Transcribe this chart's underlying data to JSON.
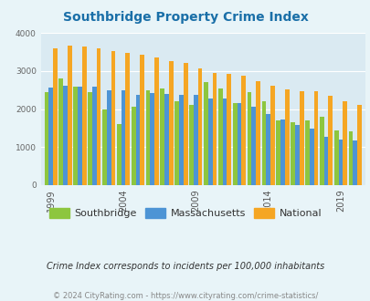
{
  "title": "Southbridge Property Crime Index",
  "years": [
    1999,
    2000,
    2001,
    2002,
    2003,
    2004,
    2005,
    2006,
    2007,
    2008,
    2009,
    2010,
    2011,
    2012,
    2013,
    2014,
    2015,
    2016,
    2017,
    2018,
    2019,
    2020
  ],
  "southbridge": [
    2450,
    2800,
    2600,
    2450,
    2000,
    1600,
    2060,
    2500,
    2550,
    2200,
    2100,
    2700,
    2550,
    2150,
    2450,
    2200,
    1700,
    1650,
    1700,
    1800,
    1450,
    1420
  ],
  "massachusetts": [
    2560,
    2620,
    2590,
    2580,
    2490,
    2490,
    2380,
    2430,
    2400,
    2380,
    2380,
    2280,
    2270,
    2160,
    2060,
    1860,
    1720,
    1580,
    1490,
    1280,
    1200,
    1180
  ],
  "national": [
    3600,
    3680,
    3650,
    3610,
    3520,
    3470,
    3430,
    3370,
    3260,
    3220,
    3060,
    2950,
    2920,
    2890,
    2730,
    2620,
    2510,
    2460,
    2470,
    2360,
    2200,
    2100
  ],
  "southbridge_color": "#8dc63f",
  "massachusetts_color": "#4d94d5",
  "national_color": "#f5a623",
  "bg_color": "#e8f4f8",
  "plot_bg_color": "#daeaf2",
  "ylim": [
    0,
    4000
  ],
  "yticks": [
    0,
    1000,
    2000,
    3000,
    4000
  ],
  "xlabel_ticks": [
    1999,
    2004,
    2009,
    2014,
    2019
  ],
  "footer1": "Crime Index corresponds to incidents per 100,000 inhabitants",
  "footer2": "© 2024 CityRating.com - https://www.cityrating.com/crime-statistics/",
  "title_color": "#1a6fa8",
  "footer1_color": "#333333",
  "footer2_color": "#888888"
}
